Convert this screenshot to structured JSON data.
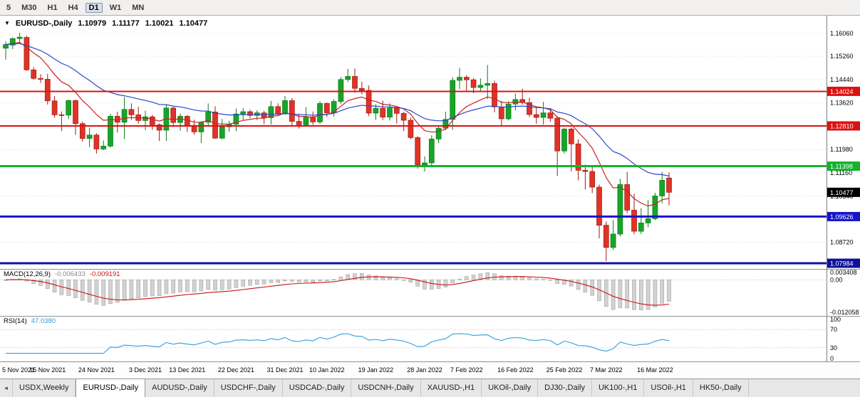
{
  "toolbar": {
    "timeframes": [
      {
        "label": "5",
        "active": false
      },
      {
        "label": "M30",
        "active": false
      },
      {
        "label": "H1",
        "active": false
      },
      {
        "label": "H4",
        "active": false
      },
      {
        "label": "D1",
        "active": true
      },
      {
        "label": "W1",
        "active": false
      },
      {
        "label": "MN",
        "active": false
      }
    ]
  },
  "ohlc_overlay": {
    "expander": "▼",
    "symbol": "EURUSD-,Daily",
    "open": "1.10979",
    "high": "1.11177",
    "low": "1.10021",
    "close": "1.10477"
  },
  "chart_data": {
    "type": "candlestick",
    "symbol": "EURUSD-",
    "timeframe": "Daily",
    "price_axis": {
      "top_price": 1.16685,
      "bottom_price": 1.07785,
      "labels": [
        "1.16060",
        "1.15260",
        "1.14440",
        "1.13620",
        "1.12810",
        "1.11980",
        "1.11160",
        "1.10340",
        "1.09540",
        "1.08720",
        "1.07900"
      ]
    },
    "horizontal_lines": [
      {
        "price": 1.14024,
        "label": "1.14024",
        "color": "#dd1111",
        "width": 2
      },
      {
        "price": 1.1281,
        "label": "1.12810",
        "color": "#dd1111",
        "width": 2
      },
      {
        "price": 1.11398,
        "label": "1.11398",
        "color": "#12b32e",
        "width": 3
      },
      {
        "price": 1.09626,
        "label": "1.09626",
        "color": "#1414cc",
        "width": 3
      },
      {
        "price": 1.07984,
        "label": "1.07984",
        "color": "#10109e",
        "width": 3
      }
    ],
    "last_price_badge": {
      "price": 1.10477,
      "label": "1.10477",
      "color": "#000000"
    },
    "moving_averages": [
      {
        "name": "ma-fast-red-line",
        "period": 10,
        "color": "#c82222"
      },
      {
        "name": "ma-slow-blue-line",
        "period": 25,
        "color": "#2c49c8"
      }
    ],
    "candles": [
      [
        1.1554,
        1.1578,
        1.1514,
        1.1567
      ],
      [
        1.1565,
        1.1592,
        1.1551,
        1.1588
      ],
      [
        1.1588,
        1.1608,
        1.157,
        1.1593
      ],
      [
        1.1592,
        1.1598,
        1.1475,
        1.1478
      ],
      [
        1.1478,
        1.1488,
        1.1443,
        1.1448
      ],
      [
        1.1448,
        1.1463,
        1.1432,
        1.1445
      ],
      [
        1.1445,
        1.1464,
        1.1356,
        1.1369
      ],
      [
        1.1369,
        1.1386,
        1.131,
        1.132
      ],
      [
        1.132,
        1.1332,
        1.1263,
        1.1319
      ],
      [
        1.1319,
        1.1374,
        1.1305,
        1.137
      ],
      [
        1.137,
        1.1374,
        1.125,
        1.1289
      ],
      [
        1.1289,
        1.1296,
        1.1226,
        1.1237
      ],
      [
        1.1237,
        1.1275,
        1.1206,
        1.1249
      ],
      [
        1.1249,
        1.1255,
        1.1184,
        1.12
      ],
      [
        1.12,
        1.123,
        1.1196,
        1.121
      ],
      [
        1.121,
        1.1323,
        1.1205,
        1.1315
      ],
      [
        1.1315,
        1.1331,
        1.1258,
        1.1294
      ],
      [
        1.1294,
        1.1383,
        1.1235,
        1.1339
      ],
      [
        1.1339,
        1.136,
        1.1302,
        1.132
      ],
      [
        1.132,
        1.1348,
        1.1289,
        1.13
      ],
      [
        1.13,
        1.1334,
        1.1266,
        1.1313
      ],
      [
        1.1313,
        1.132,
        1.1267,
        1.1285
      ],
      [
        1.1285,
        1.129,
        1.1228,
        1.1266
      ],
      [
        1.1266,
        1.1355,
        1.1228,
        1.1344
      ],
      [
        1.1344,
        1.1348,
        1.1277,
        1.1293
      ],
      [
        1.1293,
        1.1324,
        1.1264,
        1.1315
      ],
      [
        1.1315,
        1.1319,
        1.126,
        1.1283
      ],
      [
        1.1283,
        1.1303,
        1.125,
        1.126
      ],
      [
        1.126,
        1.1298,
        1.1221,
        1.1294
      ],
      [
        1.1294,
        1.136,
        1.1278,
        1.133
      ],
      [
        1.133,
        1.135,
        1.1236,
        1.1238
      ],
      [
        1.1238,
        1.1305,
        1.1234,
        1.1278
      ],
      [
        1.1278,
        1.1299,
        1.1261,
        1.1287
      ],
      [
        1.1287,
        1.1342,
        1.1263,
        1.1323
      ],
      [
        1.1323,
        1.1344,
        1.13,
        1.1331
      ],
      [
        1.1331,
        1.1338,
        1.1308,
        1.1318
      ],
      [
        1.1318,
        1.1336,
        1.1301,
        1.1327
      ],
      [
        1.1327,
        1.1334,
        1.1287,
        1.131
      ],
      [
        1.131,
        1.1369,
        1.1286,
        1.1349
      ],
      [
        1.1349,
        1.136,
        1.1316,
        1.1323
      ],
      [
        1.1323,
        1.1386,
        1.1321,
        1.137
      ],
      [
        1.137,
        1.1379,
        1.1279,
        1.1297
      ],
      [
        1.1297,
        1.1324,
        1.1272,
        1.1285
      ],
      [
        1.1285,
        1.1347,
        1.1278,
        1.1313
      ],
      [
        1.1313,
        1.1332,
        1.1285,
        1.1295
      ],
      [
        1.1295,
        1.1368,
        1.1288,
        1.136
      ],
      [
        1.136,
        1.1363,
        1.1313,
        1.1327
      ],
      [
        1.1327,
        1.1375,
        1.1314,
        1.1367
      ],
      [
        1.1367,
        1.1453,
        1.1358,
        1.1444
      ],
      [
        1.1444,
        1.1481,
        1.1435,
        1.1455
      ],
      [
        1.1455,
        1.1483,
        1.1398,
        1.1413
      ],
      [
        1.1413,
        1.1436,
        1.1392,
        1.1406
      ],
      [
        1.1406,
        1.1423,
        1.1315,
        1.1326
      ],
      [
        1.1326,
        1.1357,
        1.1302,
        1.1343
      ],
      [
        1.1343,
        1.137,
        1.1301,
        1.1312
      ],
      [
        1.1312,
        1.136,
        1.13,
        1.1344
      ],
      [
        1.1344,
        1.1349,
        1.129,
        1.1325
      ],
      [
        1.1325,
        1.1331,
        1.1263,
        1.1301
      ],
      [
        1.1301,
        1.131,
        1.1234,
        1.124
      ],
      [
        1.124,
        1.1245,
        1.1131,
        1.1144
      ],
      [
        1.1144,
        1.1174,
        1.1121,
        1.1151
      ],
      [
        1.1151,
        1.1248,
        1.1135,
        1.1235
      ],
      [
        1.1235,
        1.1279,
        1.1221,
        1.1273
      ],
      [
        1.1273,
        1.1331,
        1.1266,
        1.1304
      ],
      [
        1.1304,
        1.1452,
        1.1267,
        1.1441
      ],
      [
        1.1441,
        1.1484,
        1.1411,
        1.1452
      ],
      [
        1.1452,
        1.1459,
        1.14,
        1.1443
      ],
      [
        1.1443,
        1.1449,
        1.1396,
        1.1416
      ],
      [
        1.1416,
        1.1448,
        1.1403,
        1.1424
      ],
      [
        1.1424,
        1.1495,
        1.1375,
        1.143
      ],
      [
        1.143,
        1.144,
        1.1329,
        1.1348
      ],
      [
        1.1348,
        1.1369,
        1.1278,
        1.1306
      ],
      [
        1.1306,
        1.1368,
        1.13,
        1.1358
      ],
      [
        1.1358,
        1.1395,
        1.1336,
        1.1374
      ],
      [
        1.1374,
        1.1412,
        1.1356,
        1.1363
      ],
      [
        1.1363,
        1.138,
        1.1312,
        1.1321
      ],
      [
        1.1321,
        1.1346,
        1.1288,
        1.1311
      ],
      [
        1.1311,
        1.1366,
        1.1286,
        1.1327
      ],
      [
        1.1327,
        1.1344,
        1.1296,
        1.1308
      ],
      [
        1.1308,
        1.1315,
        1.1106,
        1.1193
      ],
      [
        1.1193,
        1.1274,
        1.1184,
        1.127
      ],
      [
        1.127,
        1.1275,
        1.1121,
        1.1218
      ],
      [
        1.1218,
        1.1234,
        1.109,
        1.1125
      ],
      [
        1.1125,
        1.1145,
        1.1058,
        1.1121
      ],
      [
        1.1121,
        1.1139,
        1.1045,
        1.1066
      ],
      [
        1.1066,
        1.1075,
        1.0886,
        1.0932
      ],
      [
        1.0932,
        1.0945,
        1.0806,
        1.0854
      ],
      [
        1.0854,
        1.095,
        1.0845,
        1.0901
      ],
      [
        1.0901,
        1.1095,
        1.0893,
        1.1075
      ],
      [
        1.1075,
        1.112,
        1.0975,
        1.0985
      ],
      [
        1.0985,
        1.1043,
        1.09,
        1.0911
      ],
      [
        1.0911,
        1.0992,
        1.0901,
        1.094
      ],
      [
        1.094,
        1.102,
        1.0925,
        1.0955
      ],
      [
        1.0955,
        1.1046,
        1.095,
        1.1035
      ],
      [
        1.1035,
        1.1119,
        1.1009,
        1.109
      ],
      [
        1.10979,
        1.11177,
        1.10021,
        1.10477
      ]
    ],
    "x_labels": [
      {
        "text": "5 Nov 2021",
        "i": 0
      },
      {
        "text": "15 Nov 2021",
        "i": 6
      },
      {
        "text": "24 Nov 2021",
        "i": 13
      },
      {
        "text": "3 Dec 2021",
        "i": 20
      },
      {
        "text": "13 Dec 2021",
        "i": 26
      },
      {
        "text": "22 Dec 2021",
        "i": 33
      },
      {
        "text": "31 Dec 2021",
        "i": 40
      },
      {
        "text": "10 Jan 2022",
        "i": 46
      },
      {
        "text": "19 Jan 2022",
        "i": 53
      },
      {
        "text": "28 Jan 2022",
        "i": 60
      },
      {
        "text": "7 Feb 2022",
        "i": 66
      },
      {
        "text": "16 Feb 2022",
        "i": 73
      },
      {
        "text": "25 Feb 2022",
        "i": 80
      },
      {
        "text": "7 Mar 2022",
        "i": 86
      },
      {
        "text": "16 Mar 2022",
        "i": 93
      }
    ],
    "macd": {
      "label": "MACD(12,26,9)",
      "main_value": "-0.006433",
      "signal_value": "-0.009191",
      "params": [
        12,
        26,
        9
      ],
      "axis_labels": [
        {
          "text": "0.003408",
          "v": 0.003408
        },
        {
          "text": "0.00",
          "v": 0
        },
        {
          "text": "-0.012058",
          "v": -0.012058
        }
      ],
      "histogram_color": "#d2d2d2",
      "signal_color": "#cc1111"
    },
    "rsi": {
      "label": "RSI(14)",
      "value": "47.0380",
      "period": 14,
      "color": "#2f9de0",
      "levels": [
        70,
        30
      ],
      "axis_labels": [
        {
          "text": "100",
          "v": 100
        },
        {
          "text": "70",
          "v": 70
        },
        {
          "text": "30",
          "v": 30
        },
        {
          "text": "0",
          "v": 0
        }
      ]
    },
    "colors": {
      "bull": "#18a428",
      "bull_border": "#0b7c18",
      "bear": "#e03328",
      "bear_border": "#9c1c12",
      "grid": "#e2e2e2",
      "axis_text": "#000000"
    }
  },
  "tabs": {
    "scroll_left": "◄",
    "items": [
      {
        "label": "USDX,Weekly",
        "active": false
      },
      {
        "label": "EURUSD-,Daily",
        "active": true
      },
      {
        "label": "AUDUSD-,Daily",
        "active": false
      },
      {
        "label": "USDCHF-,Daily",
        "active": false
      },
      {
        "label": "USDCAD-,Daily",
        "active": false
      },
      {
        "label": "USDCNH-,Daily",
        "active": false
      },
      {
        "label": "XAUUSD-,H1",
        "active": false
      },
      {
        "label": "UKOil-,Daily",
        "active": false
      },
      {
        "label": "DJ30-,Daily",
        "active": false
      },
      {
        "label": "UK100-,H1",
        "active": false
      },
      {
        "label": "USOil-,H1",
        "active": false
      },
      {
        "label": "HK50-,Daily",
        "active": false
      }
    ]
  }
}
